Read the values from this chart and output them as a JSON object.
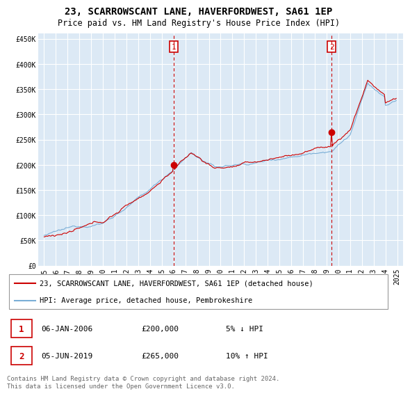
{
  "title": "23, SCARROWSCANT LANE, HAVERFORDWEST, SA61 1EP",
  "subtitle": "Price paid vs. HM Land Registry's House Price Index (HPI)",
  "ylabel_ticks": [
    "£0",
    "£50K",
    "£100K",
    "£150K",
    "£200K",
    "£250K",
    "£300K",
    "£350K",
    "£400K",
    "£450K"
  ],
  "ytick_values": [
    0,
    50000,
    100000,
    150000,
    200000,
    250000,
    300000,
    350000,
    400000,
    450000
  ],
  "ylim": [
    0,
    460000
  ],
  "xlim_start": 1994.5,
  "xlim_end": 2025.5,
  "red_line_color": "#cc0000",
  "blue_line_color": "#7aaed6",
  "marker1_x": 2006.03,
  "marker1_y": 200000,
  "marker2_x": 2019.42,
  "marker2_y": 265000,
  "vline1_x": 2006.03,
  "vline2_x": 2019.42,
  "legend_red_label": "23, SCARROWSCANT LANE, HAVERFORDWEST, SA61 1EP (detached house)",
  "legend_blue_label": "HPI: Average price, detached house, Pembrokeshire",
  "table_rows": [
    {
      "num": "1",
      "date": "06-JAN-2006",
      "price": "£200,000",
      "pct": "5% ↓ HPI"
    },
    {
      "num": "2",
      "date": "05-JUN-2019",
      "price": "£265,000",
      "pct": "10% ↑ HPI"
    }
  ],
  "footnote": "Contains HM Land Registry data © Crown copyright and database right 2024.\nThis data is licensed under the Open Government Licence v3.0.",
  "background_color": "#ffffff",
  "plot_bg_color": "#dce9f5",
  "grid_color": "#ffffff",
  "title_fontsize": 10,
  "subtitle_fontsize": 8.5,
  "tick_fontsize": 7,
  "legend_fontsize": 7.5,
  "table_fontsize": 8,
  "footnote_fontsize": 6.5
}
